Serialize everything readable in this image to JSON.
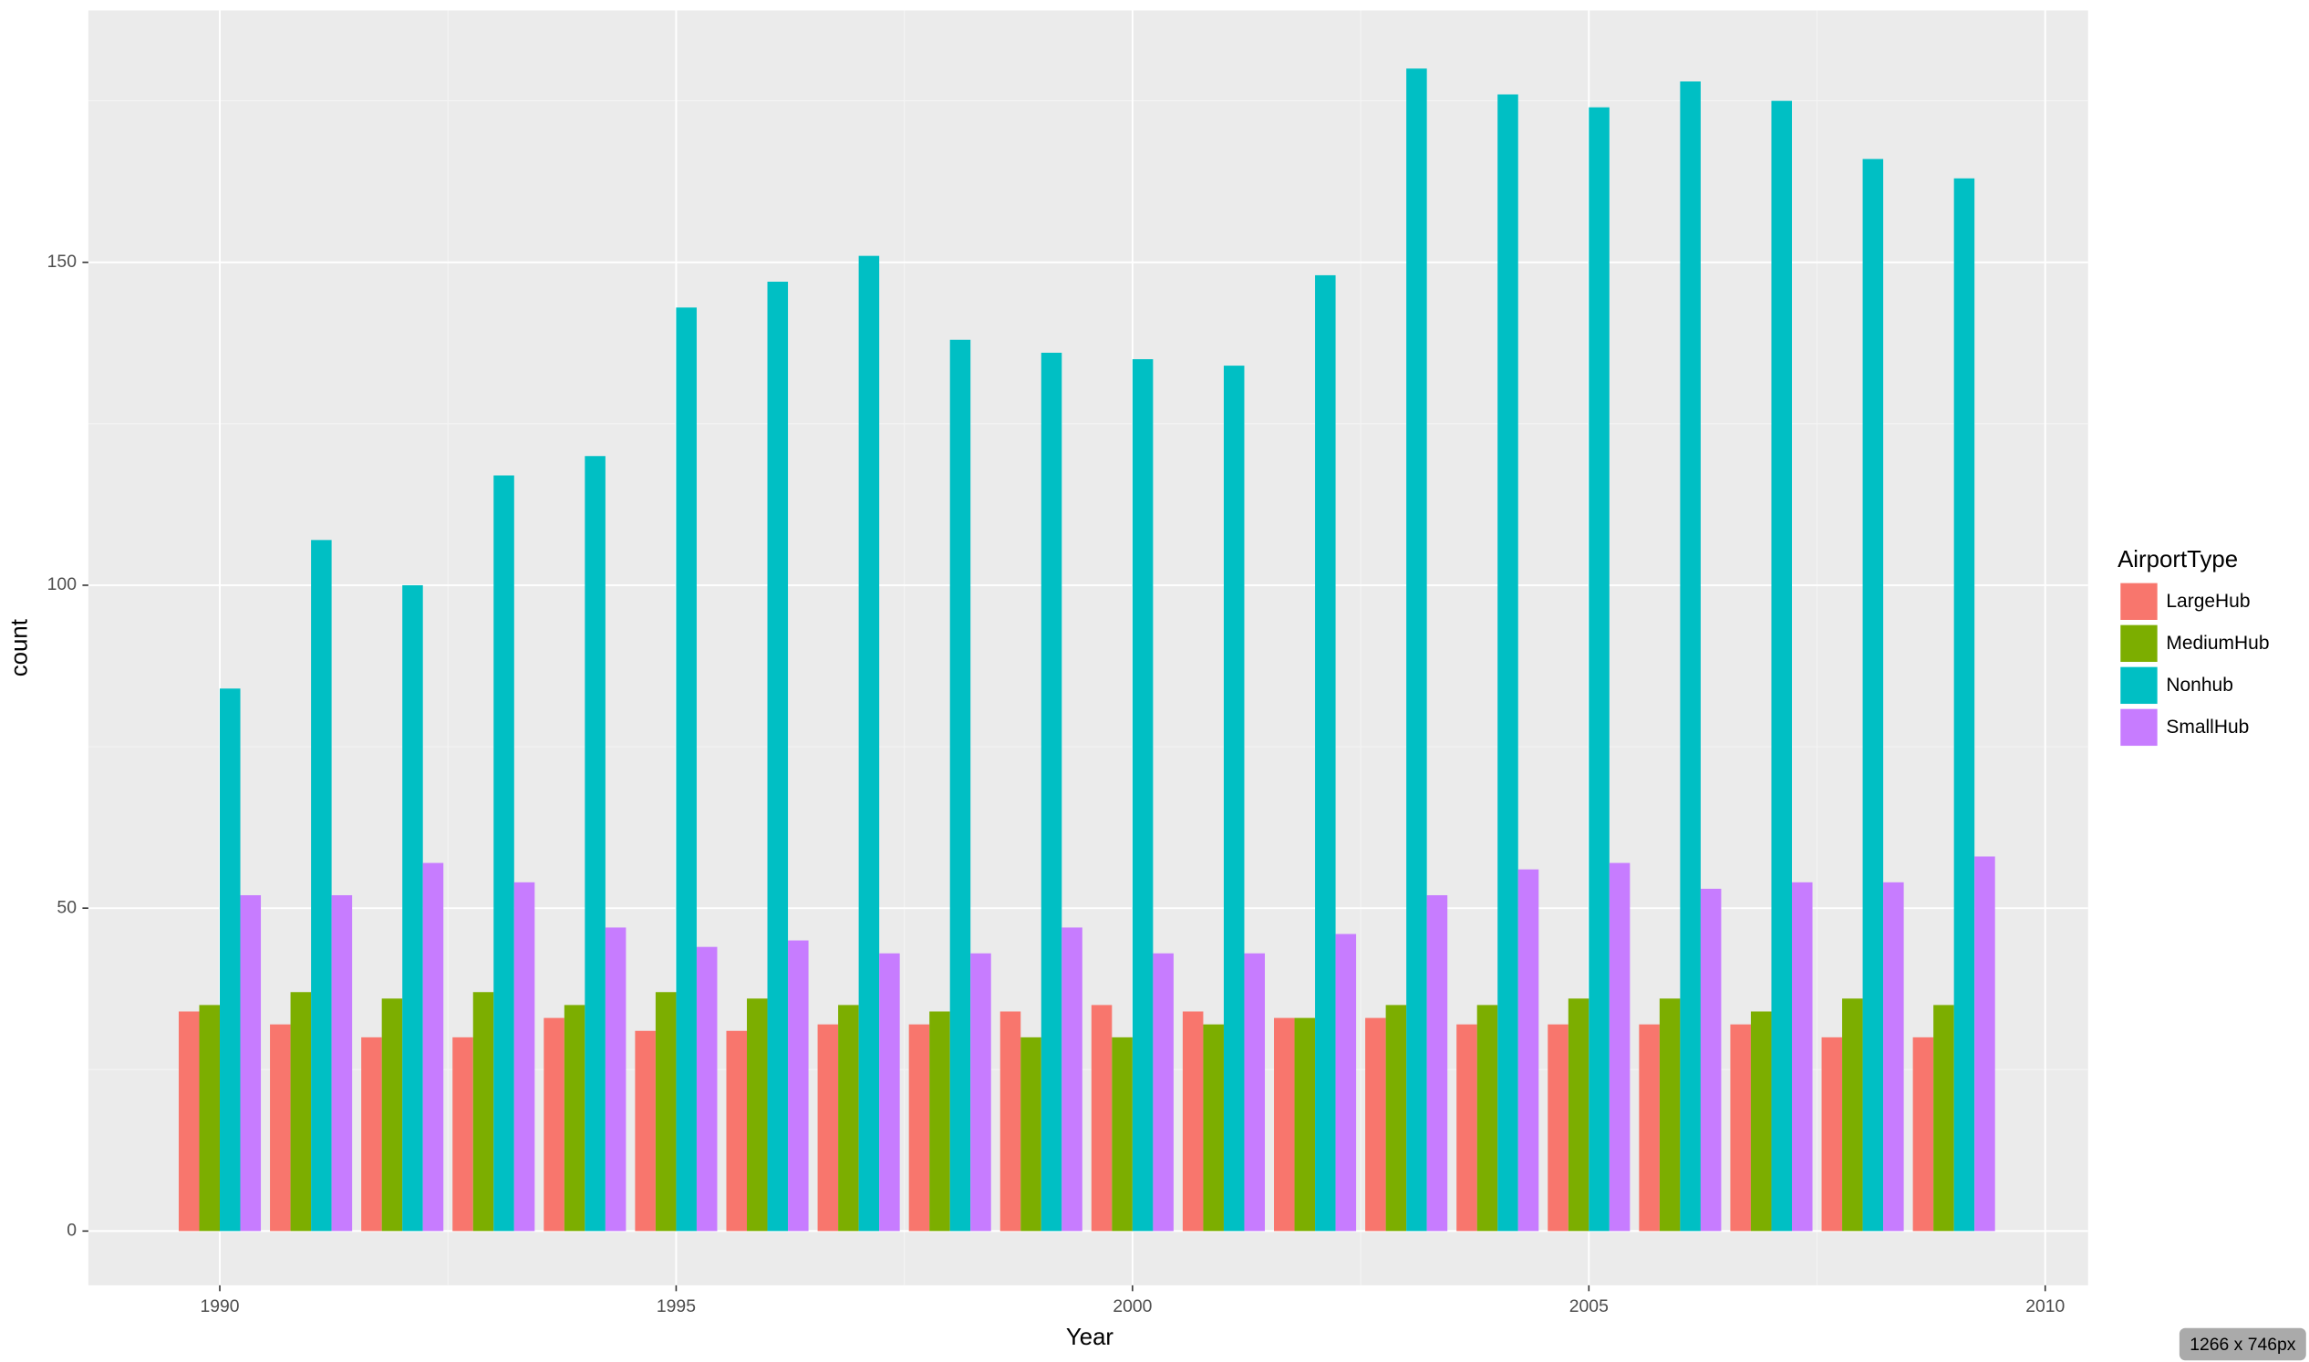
{
  "chart_data": {
    "type": "bar",
    "x": [
      1990,
      1991,
      1992,
      1993,
      1994,
      1995,
      1996,
      1997,
      1998,
      1999,
      2000,
      2001,
      2002,
      2003,
      2004,
      2005,
      2006,
      2007,
      2008,
      2009
    ],
    "series": [
      {
        "name": "LargeHub",
        "color": "#f8766d",
        "values": [
          34,
          32,
          30,
          30,
          33,
          31,
          31,
          32,
          32,
          34,
          35,
          34,
          33,
          33,
          32,
          32,
          32,
          32,
          30,
          30
        ]
      },
      {
        "name": "MediumHub",
        "color": "#7cae00",
        "values": [
          35,
          37,
          36,
          37,
          35,
          37,
          36,
          35,
          34,
          30,
          30,
          32,
          33,
          35,
          35,
          36,
          36,
          34,
          36,
          35
        ]
      },
      {
        "name": "Nonhub",
        "color": "#00bfc4",
        "values": [
          84,
          107,
          100,
          117,
          120,
          143,
          147,
          151,
          138,
          136,
          135,
          134,
          148,
          180,
          176,
          174,
          178,
          175,
          166,
          163
        ]
      },
      {
        "name": "SmallHub",
        "color": "#c77cff",
        "values": [
          52,
          52,
          57,
          54,
          47,
          44,
          45,
          43,
          43,
          47,
          43,
          43,
          46,
          52,
          56,
          57,
          53,
          54,
          54,
          58
        ]
      }
    ],
    "xlabel": "Year",
    "ylabel": "count",
    "legend_title": "AirportType",
    "xlim": [
      1988.56,
      2010.47
    ],
    "xticks": [
      1990,
      1995,
      2000,
      2005,
      2010
    ],
    "ylim": [
      -8.4,
      189
    ],
    "yticks": [
      0,
      50,
      100,
      150
    ],
    "grid": true,
    "legend": "right"
  },
  "badge": "1266 x 746px"
}
